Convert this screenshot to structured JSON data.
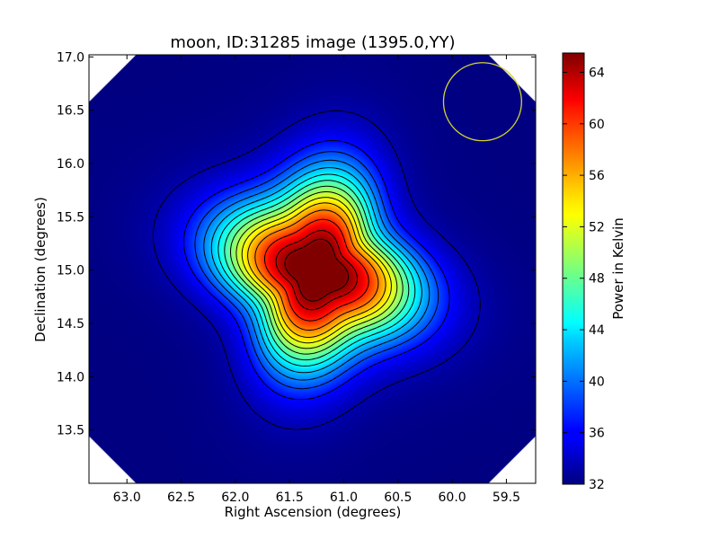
{
  "chart_data": {
    "type": "heatmap",
    "title": "moon, ID:31285 image (1395.0,YY)",
    "xlabel": "Right Ascension (degrees)",
    "ylabel": "Declination (degrees)",
    "xlim": [
      63.35,
      59.23
    ],
    "ylim": [
      13.0,
      17.02
    ],
    "x_ticks": [
      {
        "value": 63.0,
        "label": "63.0"
      },
      {
        "value": 62.5,
        "label": "62.5"
      },
      {
        "value": 62.0,
        "label": "62.0"
      },
      {
        "value": 61.5,
        "label": "61.5"
      },
      {
        "value": 61.0,
        "label": "61.0"
      },
      {
        "value": 60.5,
        "label": "60.5"
      },
      {
        "value": 60.0,
        "label": "60.0"
      },
      {
        "value": 59.5,
        "label": "59.5"
      }
    ],
    "y_ticks": [
      {
        "value": 13.5,
        "label": "13.5"
      },
      {
        "value": 14.0,
        "label": "14.0"
      },
      {
        "value": 14.5,
        "label": "14.5"
      },
      {
        "value": 15.0,
        "label": "15.0"
      },
      {
        "value": 15.5,
        "label": "15.5"
      },
      {
        "value": 16.0,
        "label": "16.0"
      },
      {
        "value": 16.5,
        "label": "16.5"
      },
      {
        "value": 17.0,
        "label": "17.0"
      }
    ],
    "colorbar": {
      "label": "Power in Kelvin",
      "colormap": "jet",
      "range": [
        32,
        65.5
      ],
      "ticks": [
        {
          "value": 32,
          "label": "32"
        },
        {
          "value": 36,
          "label": "36"
        },
        {
          "value": 40,
          "label": "40"
        },
        {
          "value": 44,
          "label": "44"
        },
        {
          "value": 48,
          "label": "48"
        },
        {
          "value": 52,
          "label": "52"
        },
        {
          "value": 56,
          "label": "56"
        },
        {
          "value": 60,
          "label": "60"
        },
        {
          "value": 64,
          "label": "64"
        }
      ]
    },
    "source": {
      "ra_center": 61.25,
      "dec_center": 15.0,
      "peak_kelvin": 65.0,
      "background_kelvin": 32.0
    },
    "contour_levels": [
      33.5,
      36.5,
      38.5,
      40.5,
      42.5,
      44.5,
      46.5,
      48.5,
      50.5,
      52.5,
      54.5,
      57,
      60,
      63,
      64.8
    ],
    "beam_circle": {
      "ra": 59.72,
      "dec": 16.58,
      "radius_deg": 0.36,
      "color": "#d4d431"
    },
    "colors": {
      "frame": "#000000",
      "contour": "#000000",
      "nodata": "#ffffff"
    }
  }
}
